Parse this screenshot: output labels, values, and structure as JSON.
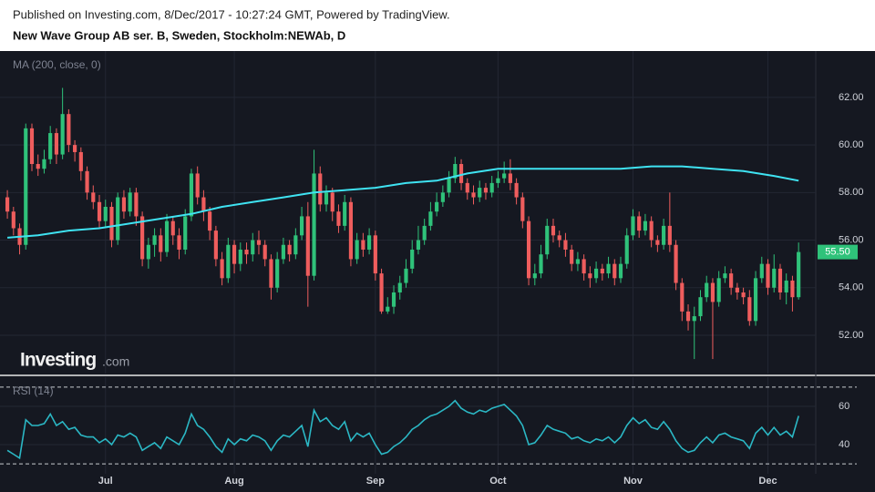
{
  "header": {
    "published": "Published on Investing.com, 8/Dec/2017 - 10:27:24 GMT, Powered by TradingView.",
    "title": "New Wave Group AB ser. B, Sweden, Stockholm:NEWAb, D"
  },
  "chart_data": [
    {
      "type": "candlestick",
      "watermark": "Investing",
      "watermark_suffix": ".com",
      "up_color": "#2fc27a",
      "down_color": "#ef5d5d",
      "open": [
        57.8,
        57.2,
        56.5,
        55.8,
        60.7,
        59.2,
        59.0,
        59.4,
        60.5,
        59.6,
        61.3,
        60.0,
        59.7,
        58.9,
        58.0,
        57.6,
        56.8,
        57.4,
        56.0,
        57.8,
        57.2,
        58.0,
        57.0,
        55.2,
        55.8,
        56.2,
        55.5,
        56.8,
        56.2,
        55.6,
        57.0,
        58.8,
        57.8,
        57.2,
        56.4,
        55.2,
        54.4,
        55.8,
        55.0,
        55.6,
        55.4,
        56.0,
        55.8,
        55.2,
        54.0,
        55.2,
        55.8,
        55.4,
        56.2,
        57.0,
        54.5,
        58.8,
        57.5,
        58.0,
        57.2,
        56.6,
        57.6,
        55.2,
        56.0,
        55.6,
        56.2,
        54.6,
        53.0,
        53.2,
        53.8,
        54.2,
        54.8,
        55.6,
        56.0,
        56.6,
        57.2,
        57.6,
        58.0,
        58.6,
        59.2,
        58.4,
        58.0,
        57.8,
        58.2,
        58.0,
        58.4,
        58.6,
        58.8,
        58.4,
        57.8,
        56.8,
        54.4,
        54.6,
        55.4,
        56.6,
        56.2,
        56.0,
        55.6,
        55.0,
        55.2,
        54.6,
        54.4,
        54.8,
        54.6,
        55.0,
        54.4,
        55.0,
        56.2,
        57.0,
        56.4,
        56.8,
        56.0,
        55.8,
        56.6,
        55.8,
        54.2,
        53.0,
        52.6,
        52.8,
        53.6,
        54.2,
        53.4,
        54.4,
        54.6,
        54.0,
        53.8,
        53.6,
        52.6,
        54.4,
        55.0,
        54.0,
        54.8,
        53.8,
        54.3,
        53.6
      ],
      "high": [
        58.1,
        57.4,
        56.7,
        60.9,
        60.9,
        59.6,
        59.8,
        60.8,
        60.7,
        62.4,
        61.5,
        60.2,
        59.9,
        59.1,
        58.3,
        57.9,
        57.7,
        57.6,
        58.0,
        58.1,
        58.2,
        58.2,
        57.2,
        56.1,
        56.5,
        56.5,
        57.1,
        57.0,
        56.5,
        57.3,
        59.0,
        59.1,
        58.1,
        57.4,
        56.6,
        55.5,
        56.1,
        56.0,
        55.9,
        55.9,
        56.3,
        56.4,
        56.0,
        55.4,
        55.5,
        56.1,
        56.0,
        56.5,
        57.4,
        57.6,
        59.8,
        59.1,
        58.3,
        58.2,
        57.5,
        57.9,
        57.8,
        56.3,
        56.3,
        56.5,
        56.4,
        54.8,
        53.6,
        54.1,
        54.5,
        55.2,
        56.0,
        56.6,
        56.9,
        57.6,
        58.0,
        58.3,
        58.9,
        59.5,
        59.4,
        58.6,
        58.3,
        58.5,
        58.4,
        58.7,
        58.9,
        59.3,
        59.4,
        58.6,
        58.0,
        57.0,
        55.0,
        55.8,
        56.9,
        56.9,
        56.4,
        56.3,
        55.8,
        55.5,
        55.4,
        54.9,
        55.1,
        55.0,
        55.3,
        55.2,
        55.3,
        56.5,
        57.3,
        57.2,
        57.1,
        57.0,
        56.2,
        56.9,
        58.0,
        56.0,
        54.4,
        53.3,
        53.2,
        53.9,
        54.5,
        54.4,
        54.7,
        54.9,
        54.8,
        54.2,
        54.0,
        53.9,
        54.7,
        55.3,
        55.2,
        55.4,
        55.0,
        54.6,
        54.5,
        55.9
      ],
      "low": [
        56.9,
        56.2,
        55.4,
        55.6,
        58.9,
        58.7,
        58.8,
        59.2,
        59.2,
        59.4,
        59.7,
        59.3,
        58.5,
        57.7,
        57.3,
        56.5,
        56.5,
        55.7,
        55.8,
        56.9,
        57.0,
        56.6,
        54.9,
        54.8,
        55.3,
        55.1,
        55.3,
        55.8,
        55.2,
        55.4,
        56.8,
        57.5,
        56.8,
        56.0,
        54.9,
        54.1,
        54.2,
        54.6,
        54.7,
        55.0,
        55.1,
        55.4,
        54.9,
        53.5,
        53.8,
        55.0,
        55.1,
        55.2,
        56.0,
        53.2,
        54.3,
        57.2,
        57.2,
        56.8,
        56.3,
        56.4,
        54.9,
        55.0,
        55.3,
        55.4,
        54.3,
        52.9,
        52.9,
        52.9,
        53.5,
        54.0,
        54.6,
        55.4,
        55.8,
        56.4,
        57.0,
        57.4,
        57.8,
        58.4,
        58.1,
        57.7,
        57.5,
        57.6,
        57.7,
        57.8,
        58.2,
        58.4,
        58.1,
        57.5,
        56.5,
        54.1,
        54.1,
        54.4,
        55.2,
        55.9,
        55.7,
        55.3,
        54.7,
        54.7,
        54.3,
        54.0,
        54.2,
        54.3,
        54.4,
        54.1,
        54.2,
        54.8,
        56.0,
        56.1,
        56.2,
        55.7,
        55.5,
        55.6,
        55.5,
        53.9,
        52.6,
        52.2,
        51.0,
        52.6,
        53.4,
        51.0,
        53.2,
        54.2,
        53.7,
        53.5,
        53.3,
        52.4,
        52.4,
        54.2,
        53.7,
        53.8,
        53.5,
        53.3,
        53.0,
        53.5
      ],
      "close": [
        57.2,
        56.5,
        55.8,
        60.7,
        59.2,
        59.0,
        59.4,
        60.5,
        59.6,
        61.3,
        60.0,
        59.7,
        58.9,
        58.0,
        57.6,
        56.8,
        57.4,
        56.0,
        57.8,
        57.2,
        58.0,
        57.0,
        55.2,
        55.8,
        56.2,
        55.5,
        56.8,
        56.2,
        55.6,
        57.0,
        58.8,
        57.8,
        57.2,
        56.4,
        55.2,
        54.4,
        55.8,
        55.0,
        55.6,
        55.4,
        56.0,
        55.8,
        55.2,
        54.0,
        55.2,
        55.8,
        55.4,
        56.2,
        57.0,
        54.5,
        58.8,
        57.5,
        58.0,
        57.2,
        56.6,
        57.6,
        55.2,
        56.0,
        55.6,
        56.2,
        54.6,
        53.0,
        53.2,
        53.8,
        54.2,
        54.8,
        55.6,
        56.0,
        56.6,
        57.2,
        57.6,
        58.0,
        58.6,
        59.2,
        58.4,
        58.0,
        57.8,
        58.2,
        58.0,
        58.4,
        58.6,
        58.8,
        58.4,
        57.8,
        56.8,
        54.4,
        54.6,
        55.4,
        56.6,
        56.2,
        56.0,
        55.6,
        55.0,
        55.2,
        54.6,
        54.4,
        54.8,
        54.6,
        55.0,
        54.4,
        55.0,
        56.2,
        57.0,
        56.4,
        56.8,
        56.0,
        55.8,
        56.6,
        55.8,
        54.2,
        53.0,
        52.6,
        52.8,
        53.6,
        54.2,
        53.4,
        54.4,
        54.6,
        54.0,
        53.8,
        53.6,
        52.6,
        54.4,
        55.0,
        54.0,
        54.8,
        53.8,
        54.3,
        53.6,
        55.5
      ],
      "series": [
        {
          "name": "MA (200, close, 0)",
          "color": "#3fe3f2",
          "x": [
            0,
            5,
            10,
            15,
            20,
            25,
            30,
            35,
            40,
            45,
            50,
            55,
            60,
            65,
            70,
            75,
            80,
            85,
            90,
            95,
            100,
            105,
            110,
            115,
            120,
            125,
            129
          ],
          "values": [
            56.1,
            56.2,
            56.4,
            56.5,
            56.7,
            56.9,
            57.1,
            57.4,
            57.6,
            57.8,
            58.0,
            58.1,
            58.2,
            58.4,
            58.5,
            58.8,
            59.0,
            59.0,
            59.0,
            59.0,
            59.0,
            59.1,
            59.1,
            59.0,
            58.9,
            58.7,
            58.5
          ]
        }
      ],
      "last_price": {
        "value": 55.5,
        "label": "55.50"
      },
      "xlim": [
        -1.2,
        131.8
      ],
      "ylim": [
        50.39,
        63.95
      ],
      "yticks": [
        {
          "value": 52,
          "label": "52.00"
        },
        {
          "value": 54,
          "label": "54.00"
        },
        {
          "value": 56,
          "label": "56.00"
        },
        {
          "value": 58,
          "label": "58.00"
        },
        {
          "value": 60,
          "label": "60.00"
        },
        {
          "value": 62,
          "label": "62.00"
        }
      ],
      "grid": true
    },
    {
      "type": "line",
      "title": "RSI (14)",
      "color": "#2bb7c4",
      "values": [
        37,
        35,
        33,
        53,
        50,
        50,
        51,
        56,
        50,
        52,
        48,
        49,
        45,
        44,
        44,
        41,
        43,
        40,
        45,
        44,
        46,
        44,
        37,
        39,
        41,
        38,
        44,
        42,
        40,
        46,
        56,
        50,
        48,
        44,
        39,
        36,
        43,
        40,
        43,
        42,
        45,
        44,
        42,
        37,
        42,
        45,
        44,
        47,
        50,
        39,
        58,
        52,
        54,
        50,
        48,
        52,
        42,
        46,
        44,
        46,
        40,
        35,
        36,
        39,
        41,
        44,
        48,
        50,
        53,
        55,
        56,
        58,
        60,
        63,
        59,
        57,
        56,
        58,
        57,
        59,
        60,
        61,
        58,
        55,
        50,
        40,
        41,
        45,
        50,
        48,
        47,
        46,
        43,
        44,
        42,
        41,
        43,
        42,
        44,
        41,
        44,
        50,
        54,
        51,
        53,
        49,
        48,
        52,
        48,
        42,
        38,
        36,
        37,
        41,
        44,
        41,
        45,
        46,
        44,
        43,
        42,
        38,
        46,
        49,
        45,
        49,
        45,
        47,
        44,
        55
      ],
      "levels": [
        30,
        70
      ],
      "xlim": [
        -1.2,
        131.8
      ],
      "ylim": [
        24.8,
        75.2
      ],
      "yticks": [
        40,
        60
      ],
      "xticks": [
        {
          "value": 16,
          "label": "Jul"
        },
        {
          "value": 37,
          "label": "Aug"
        },
        {
          "value": 60,
          "label": "Sep"
        },
        {
          "value": 80,
          "label": "Oct"
        },
        {
          "value": 102,
          "label": "Nov"
        },
        {
          "value": 124,
          "label": "Dec"
        }
      ],
      "grid": true
    }
  ]
}
